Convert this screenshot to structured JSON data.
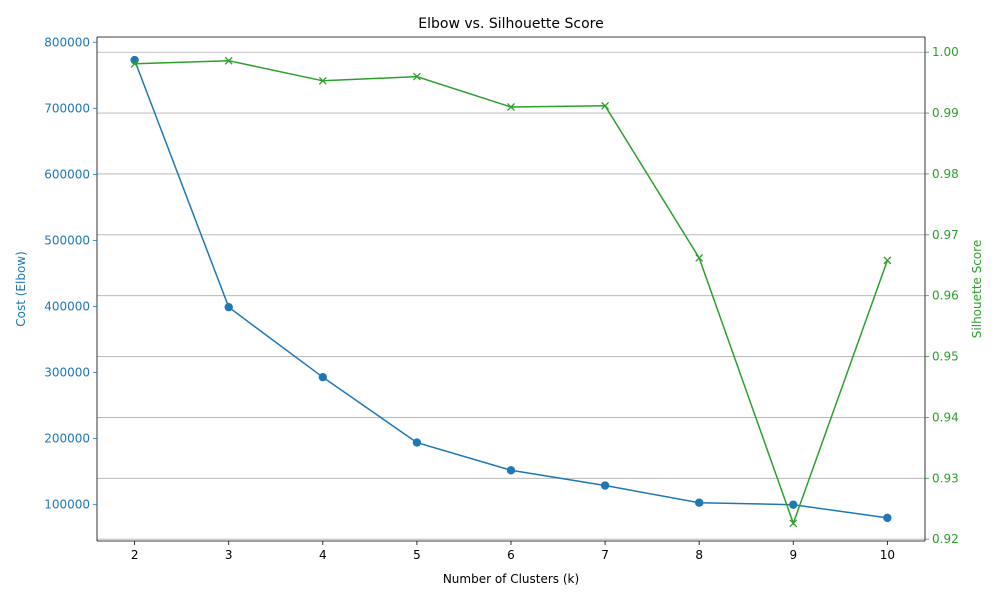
{
  "chart_data": {
    "type": "line",
    "title": "Elbow vs. Silhouette Score",
    "xlabel": "Number of Clusters (k)",
    "ylabel_left": "Cost (Elbow)",
    "ylabel_right": "Silhouette Score",
    "x": [
      2,
      3,
      4,
      5,
      6,
      7,
      8,
      9,
      10
    ],
    "xlim": [
      1.6,
      10.4
    ],
    "ylim_left": [
      45000,
      808000
    ],
    "ylim_right": [
      0.9197,
      1.0025
    ],
    "xticks": [
      "2",
      "3",
      "4",
      "5",
      "6",
      "7",
      "8",
      "9",
      "10"
    ],
    "yticks_left": [
      "100000",
      "200000",
      "300000",
      "400000",
      "500000",
      "600000",
      "700000",
      "800000"
    ],
    "yticks_right": [
      "0.92",
      "0.93",
      "0.94",
      "0.95",
      "0.96",
      "0.97",
      "0.98",
      "0.99",
      "1.00"
    ],
    "grid": "horizontal lines at right-axis ticks",
    "series": [
      {
        "axis": "left",
        "color": "#1f77b4",
        "marker": "circle",
        "values": [
          773000,
          399000,
          293000,
          194000,
          152000,
          129000,
          103000,
          100000,
          80000
        ]
      },
      {
        "axis": "right",
        "color": "#2ca02c",
        "marker": "x",
        "values": [
          0.9981,
          0.9986,
          0.9953,
          0.996,
          0.991,
          0.9912,
          0.9662,
          0.9226,
          0.9658
        ]
      }
    ],
    "colors": {
      "left_axis": "#1f77b4",
      "right_axis": "#2ca02c",
      "grid": "#b0b0b0",
      "text": "#000000"
    }
  }
}
